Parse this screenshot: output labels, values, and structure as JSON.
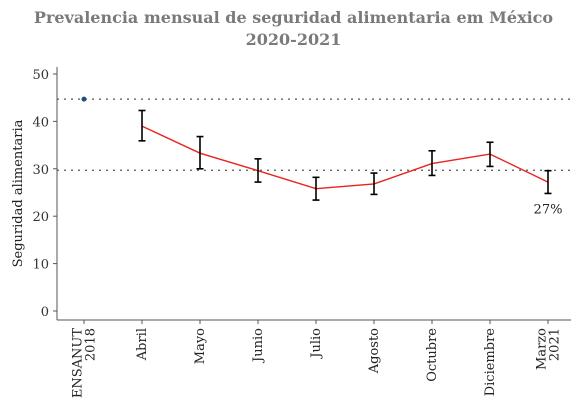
{
  "title_line1": "Prevalencia mensual de seguridad alimentaria em México",
  "title_line2": "2020-2021",
  "chart_data": {
    "type": "line",
    "ylabel": "Seguridad alimentaria",
    "ylim": [
      0,
      50
    ],
    "y_ticks": [
      0,
      10,
      20,
      30,
      40,
      50
    ],
    "categories": [
      [
        "ENSANUT",
        "2018"
      ],
      [
        "Abril"
      ],
      [
        "Mayo"
      ],
      [
        "Junio"
      ],
      [
        "Julio"
      ],
      [
        "Agosto"
      ],
      [
        "Octubre"
      ],
      [
        "Diciembre"
      ],
      [
        "Marzo",
        "2021"
      ]
    ],
    "reference_lines": [
      44.7,
      29.7
    ],
    "reference_point": {
      "category_index": 0,
      "value": 44.7
    },
    "series": [
      {
        "values": [
          null,
          39.0,
          33.3,
          29.6,
          25.8,
          26.8,
          31.1,
          33.1,
          27.2
        ],
        "error_low": [
          null,
          35.9,
          30.0,
          27.2,
          23.4,
          24.6,
          28.6,
          30.5,
          24.8
        ],
        "error_high": [
          null,
          42.3,
          36.8,
          32.1,
          28.2,
          29.1,
          33.8,
          35.6,
          29.6
        ]
      }
    ],
    "annotation": {
      "category_index": 8,
      "text": "27%"
    },
    "grid": false,
    "colors": {
      "line": "#e8241f",
      "reference_point": "#1f4e79",
      "error_bar": "#000000",
      "axis": "#555555",
      "reference_line": "#555555"
    }
  }
}
